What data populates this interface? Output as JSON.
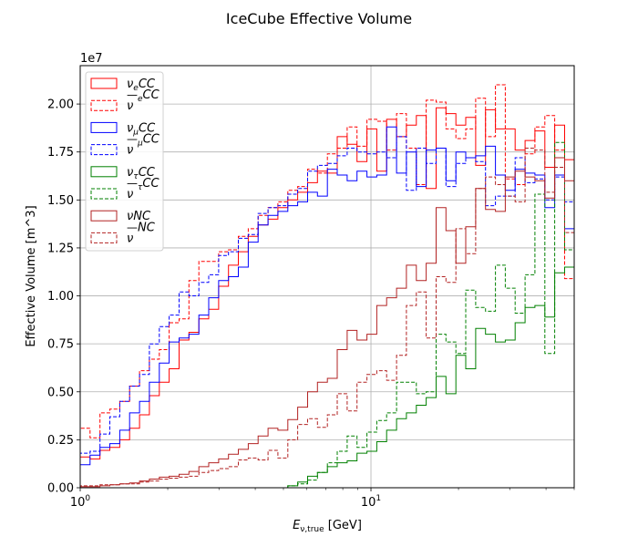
{
  "chart_data": {
    "type": "histogram",
    "title": "IceCube Effective Volume",
    "xlabel": "E_{ν,true} [GeV]",
    "ylabel": "Effective Volume [m^3]",
    "x_scale": "log",
    "xlim": [
      1,
      50
    ],
    "ylim": [
      0,
      22000000
    ],
    "y_offset_label": "1e7",
    "x_ticks": [
      {
        "value": 1,
        "base": "10",
        "exp": "0"
      },
      {
        "value": 10,
        "base": "10",
        "exp": "1"
      }
    ],
    "y_ticks": [
      0,
      2500000,
      5000000,
      7500000,
      10000000,
      12500000,
      15000000,
      17500000,
      20000000
    ],
    "y_tick_labels": [
      "0.00",
      "0.25",
      "0.50",
      "0.75",
      "1.00",
      "1.25",
      "1.50",
      "1.75",
      "2.00"
    ],
    "grid": true,
    "legend_position": "upper-left",
    "bin_edges_log10": [
      0,
      0.034,
      0.068,
      0.102,
      0.136,
      0.17,
      0.204,
      0.238,
      0.272,
      0.306,
      0.34,
      0.374,
      0.408,
      0.442,
      0.476,
      0.51,
      0.544,
      0.578,
      0.612,
      0.646,
      0.68,
      0.714,
      0.748,
      0.782,
      0.816,
      0.85,
      0.884,
      0.918,
      0.952,
      0.986,
      1.02,
      1.054,
      1.088,
      1.122,
      1.156,
      1.19,
      1.224,
      1.258,
      1.292,
      1.326,
      1.36,
      1.394,
      1.428,
      1.462,
      1.496,
      1.53,
      1.564,
      1.598,
      1.632,
      1.666,
      1.699
    ],
    "series": [
      {
        "name": "ν_e CC",
        "main": "ν",
        "sub": "e",
        "suffix": "CC",
        "bar": false,
        "color": "#ff0000",
        "dashed": false,
        "values": [
          1.6,
          1.5,
          1.95,
          2.1,
          2.5,
          3.1,
          3.8,
          4.8,
          5.5,
          6.2,
          7.7,
          8.1,
          8.8,
          9.3,
          10.5,
          11.6,
          12.3,
          13.1,
          13.7,
          14.0,
          14.6,
          15.0,
          15.4,
          15.9,
          16.5,
          16.4,
          18.3,
          17.9,
          17.0,
          18.7,
          16.5,
          19.2,
          18.3,
          18.9,
          19.4,
          15.6,
          19.8,
          19.5,
          18.9,
          19.3,
          16.8,
          19.7,
          18.7,
          18.7,
          17.6,
          18.1,
          18.6,
          16.7,
          18.9,
          17.1
        ]
      },
      {
        "name": "ν̄_e CC",
        "main": "ν",
        "sub": "e",
        "suffix": "CC",
        "bar": true,
        "color": "#ff0000",
        "dashed": true,
        "values": [
          3.1,
          2.6,
          3.9,
          4.1,
          4.5,
          5.3,
          6.1,
          6.7,
          7.2,
          8.6,
          8.8,
          10.8,
          11.8,
          11.8,
          12.3,
          12.4,
          13.1,
          13.5,
          14.2,
          14.6,
          14.9,
          15.5,
          15.7,
          16.6,
          16.4,
          17.4,
          17.7,
          18.8,
          17.8,
          19.2,
          19.1,
          17.6,
          19.5,
          17.7,
          15.8,
          20.2,
          20.1,
          18.7,
          18.2,
          18.7,
          20.3,
          18.3,
          21.0,
          16.1,
          15.8,
          17.4,
          18.8,
          19.4,
          17.6,
          10.9
        ]
      },
      {
        "name": "ν_μ CC",
        "main": "ν",
        "sub": "μ",
        "suffix": "CC",
        "bar": false,
        "color": "#0000ff",
        "dashed": false,
        "values": [
          1.2,
          1.7,
          2.1,
          2.3,
          3.0,
          3.9,
          4.5,
          5.5,
          6.5,
          7.6,
          7.8,
          8.0,
          9.0,
          9.9,
          10.8,
          11.0,
          11.5,
          12.8,
          13.7,
          14.2,
          14.4,
          14.7,
          14.9,
          15.4,
          15.2,
          16.6,
          16.3,
          16.0,
          16.5,
          16.2,
          16.3,
          18.8,
          16.4,
          17.5,
          15.7,
          17.6,
          17.7,
          16.0,
          17.5,
          17.2,
          17.3,
          17.8,
          16.3,
          15.5,
          16.6,
          16.4,
          16.3,
          14.6,
          16.3,
          13.5
        ]
      },
      {
        "name": "ν̄_μ CC",
        "main": "ν",
        "sub": "μ",
        "suffix": "CC",
        "bar": true,
        "color": "#0000ff",
        "dashed": true,
        "values": [
          1.8,
          1.9,
          2.8,
          3.7,
          4.5,
          5.3,
          5.9,
          7.5,
          8.4,
          9.0,
          10.2,
          10.0,
          10.7,
          11.1,
          12.1,
          12.3,
          13.0,
          13.2,
          14.3,
          14.6,
          14.7,
          15.3,
          15.6,
          16.5,
          16.8,
          16.9,
          17.3,
          17.7,
          17.5,
          17.4,
          17.5,
          17.2,
          18.3,
          15.5,
          17.7,
          16.9,
          17.7,
          15.7,
          16.9,
          17.2,
          17.0,
          14.7,
          15.2,
          15.2,
          17.2,
          15.9,
          16.1,
          15.0,
          16.2,
          14.9
        ]
      },
      {
        "name": "ν_τ CC",
        "main": "ν",
        "sub": "τ",
        "suffix": "CC",
        "bar": false,
        "color": "#008000",
        "dashed": false,
        "values": [
          0,
          0,
          0,
          0,
          0,
          0,
          0,
          0,
          0,
          0,
          0,
          0,
          0,
          0,
          0,
          0,
          0,
          0,
          0,
          0,
          0,
          0.1,
          0.3,
          0.6,
          0.8,
          1.1,
          1.3,
          1.4,
          1.8,
          1.9,
          2.4,
          3.0,
          3.6,
          3.9,
          4.3,
          4.7,
          5.8,
          4.9,
          6.9,
          6.2,
          8.3,
          8.0,
          7.6,
          7.7,
          8.6,
          9.4,
          9.5,
          8.9,
          11.2,
          11.5
        ]
      },
      {
        "name": "ν̄_τ CC",
        "main": "ν",
        "sub": "τ",
        "suffix": "CC",
        "bar": true,
        "color": "#008000",
        "dashed": true,
        "values": [
          0,
          0,
          0,
          0,
          0,
          0,
          0,
          0,
          0,
          0,
          0,
          0,
          0,
          0,
          0,
          0,
          0,
          0,
          0,
          0,
          0,
          0.1,
          0.2,
          0.4,
          0.8,
          1.3,
          1.9,
          2.7,
          2.1,
          2.9,
          3.5,
          3.9,
          5.5,
          5.5,
          4.9,
          5.0,
          8.0,
          7.6,
          7.0,
          10.3,
          9.4,
          9.2,
          11.6,
          10.4,
          9.1,
          11.1,
          15.3,
          7.0,
          18.0,
          12.4
        ]
      },
      {
        "name": "νNC",
        "main": "ν",
        "sub": "",
        "suffix": "NC",
        "bar": false,
        "color": "#b22222",
        "dashed": false,
        "values": [
          0.05,
          0.05,
          0.1,
          0.15,
          0.2,
          0.25,
          0.35,
          0.45,
          0.55,
          0.6,
          0.7,
          0.85,
          1.1,
          1.3,
          1.5,
          1.75,
          2.0,
          2.3,
          2.7,
          3.1,
          3.0,
          3.55,
          4.2,
          5.0,
          5.5,
          5.7,
          7.2,
          8.2,
          7.7,
          8.0,
          9.5,
          9.9,
          10.4,
          11.6,
          10.8,
          11.7,
          14.6,
          13.4,
          11.7,
          13.6,
          15.6,
          14.5,
          14.4,
          16.2,
          16.5,
          16.2,
          16.0,
          15.1,
          17.2,
          16.0
        ]
      },
      {
        "name": "ν̄NC",
        "main": "ν",
        "sub": "",
        "suffix": "NC",
        "bar": true,
        "color": "#b22222",
        "dashed": true,
        "values": [
          0.1,
          0.1,
          0.15,
          0.15,
          0.2,
          0.2,
          0.3,
          0.35,
          0.45,
          0.5,
          0.55,
          0.6,
          0.8,
          0.9,
          1.0,
          1.1,
          1.45,
          1.55,
          1.45,
          1.95,
          1.55,
          2.5,
          3.3,
          3.6,
          3.15,
          3.8,
          4.9,
          4.0,
          5.5,
          5.9,
          6.1,
          5.6,
          6.9,
          9.5,
          10.2,
          7.8,
          11.0,
          10.7,
          13.5,
          12.2,
          15.6,
          16.2,
          15.8,
          15.2,
          14.9,
          17.7,
          17.6,
          15.4,
          16.7,
          13.3
        ]
      }
    ],
    "value_scale": 1000000
  }
}
